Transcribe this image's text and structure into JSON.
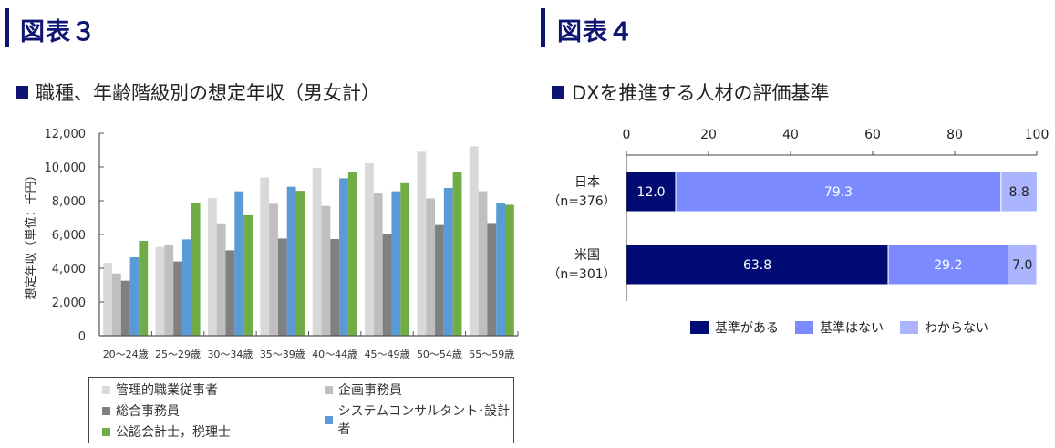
{
  "figure3": {
    "label": "図表３",
    "subtitle": "職種、年齢階級別の想定年収（男女計）"
  },
  "figure4": {
    "label": "図表４",
    "subtitle": "DXを推進する人材の評価基準"
  },
  "accent_color": "#0d1472",
  "chart_data": [
    {
      "type": "bar",
      "title": "職種、年齢階級別の想定年収（男女計）",
      "xlabel": "",
      "ylabel": "想定年収（単位：千円）",
      "ylim": [
        0,
        12000
      ],
      "yticks": [
        "0",
        "2,000",
        "4,000",
        "6,000",
        "8,000",
        "10,000",
        "12,000"
      ],
      "ytick_values": [
        0,
        2000,
        4000,
        6000,
        8000,
        10000,
        12000
      ],
      "grid": false,
      "legend_position": "bottom",
      "categories": [
        "20～24歳",
        "25～29歳",
        "30～34歳",
        "35～39歳",
        "40～44歳",
        "45～49歳",
        "50～54歳",
        "55～59歳"
      ],
      "series": [
        {
          "name": "管理的職業従事者",
          "color": "#d9d9d9",
          "values": [
            4320,
            5260,
            8160,
            9380,
            9950,
            10220,
            10900,
            11220
          ]
        },
        {
          "name": "企画事務員",
          "color": "#bfbfbf",
          "values": [
            3690,
            5380,
            6660,
            7820,
            7690,
            8460,
            8140,
            8570
          ]
        },
        {
          "name": "総合事務員",
          "color": "#808080",
          "values": [
            3260,
            4400,
            5060,
            5760,
            5730,
            6020,
            6560,
            6680
          ]
        },
        {
          "name": "システムコンサルタント･設計者",
          "color": "#5b9bd5",
          "values": [
            4650,
            5710,
            8560,
            8830,
            9330,
            8560,
            8760,
            7890
          ]
        },
        {
          "name": "公認会計士，税理士",
          "color": "#70ad47",
          "values": [
            5620,
            7840,
            7140,
            8590,
            9690,
            9040,
            9680,
            7760
          ]
        }
      ]
    },
    {
      "type": "bar",
      "orientation": "horizontal-stacked",
      "title": "DXを推進する人材の評価基準",
      "xlim": [
        0,
        100
      ],
      "xticks": [
        "0",
        "20",
        "40",
        "60",
        "80",
        "100"
      ],
      "xtick_values": [
        0,
        20,
        40,
        60,
        80,
        100
      ],
      "grid": false,
      "legend_position": "bottom",
      "categories": [
        {
          "line1": "日本",
          "line2": "（n=376）"
        },
        {
          "line1": "米国",
          "line2": "（n=301）"
        }
      ],
      "series": [
        {
          "name": "基準がある",
          "color": "#000c73",
          "label_color": "#ffffff",
          "values": [
            12.0,
            63.8
          ],
          "labels": [
            "12.0",
            "63.8"
          ]
        },
        {
          "name": "基準はない",
          "color": "#7b8bff",
          "label_color": "#ffffff",
          "values": [
            79.3,
            29.2
          ],
          "labels": [
            "79.3",
            "29.2"
          ]
        },
        {
          "name": "わからない",
          "color": "#aab4ff",
          "label_color": "#222222",
          "values": [
            8.8,
            7.0
          ],
          "labels": [
            "8.8",
            "7.0"
          ]
        }
      ]
    }
  ]
}
